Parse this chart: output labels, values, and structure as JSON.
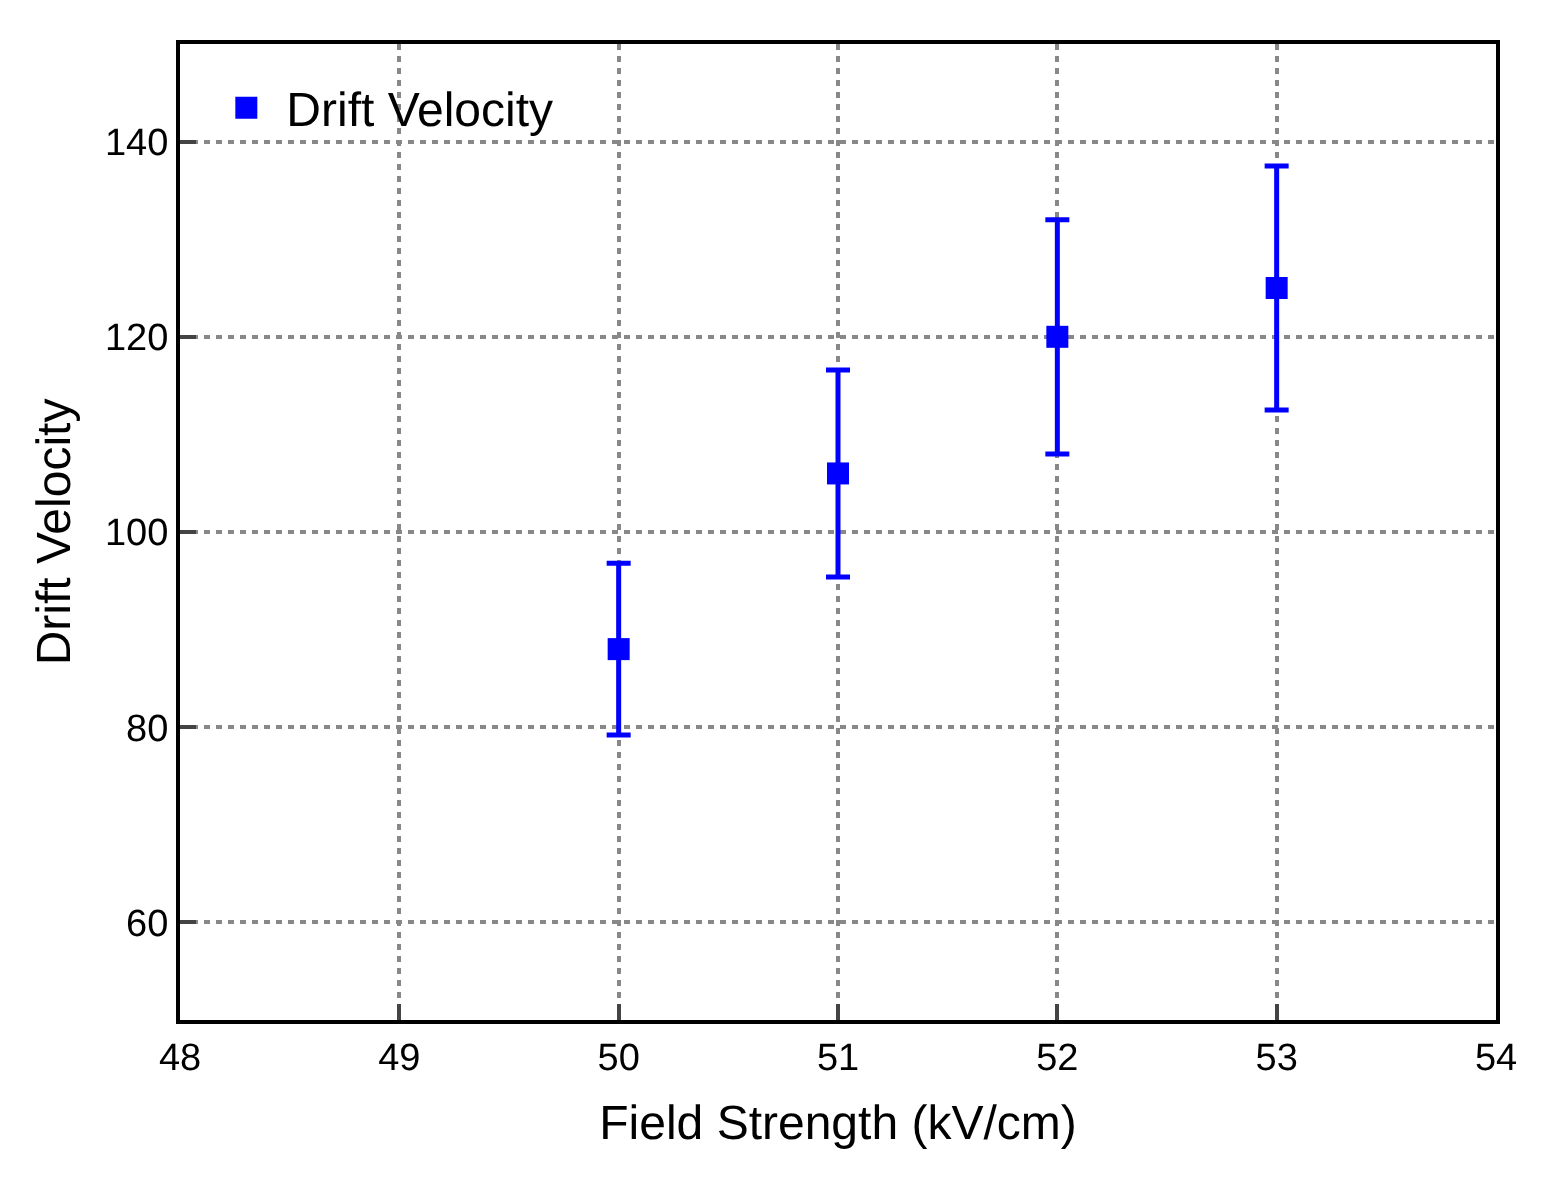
{
  "chart_data": {
    "type": "scatter",
    "xlabel": "Field Strength (kV/cm)",
    "ylabel": "Drift Velocity",
    "x": [
      50,
      51,
      52,
      53
    ],
    "series": [
      {
        "name": "Drift Velocity",
        "color": "#0000ff",
        "values": [
          88,
          106,
          120,
          125
        ],
        "errors": [
          8.8,
          10.6,
          12,
          12.5
        ]
      }
    ],
    "xlim": [
      48,
      54
    ],
    "xticks": [
      48,
      49,
      50,
      51,
      52,
      53,
      54
    ],
    "ylim": [
      50,
      150
    ],
    "yticks": [
      60,
      80,
      100,
      120,
      140
    ],
    "grid": true,
    "legend": "top left",
    "marker": "square"
  }
}
